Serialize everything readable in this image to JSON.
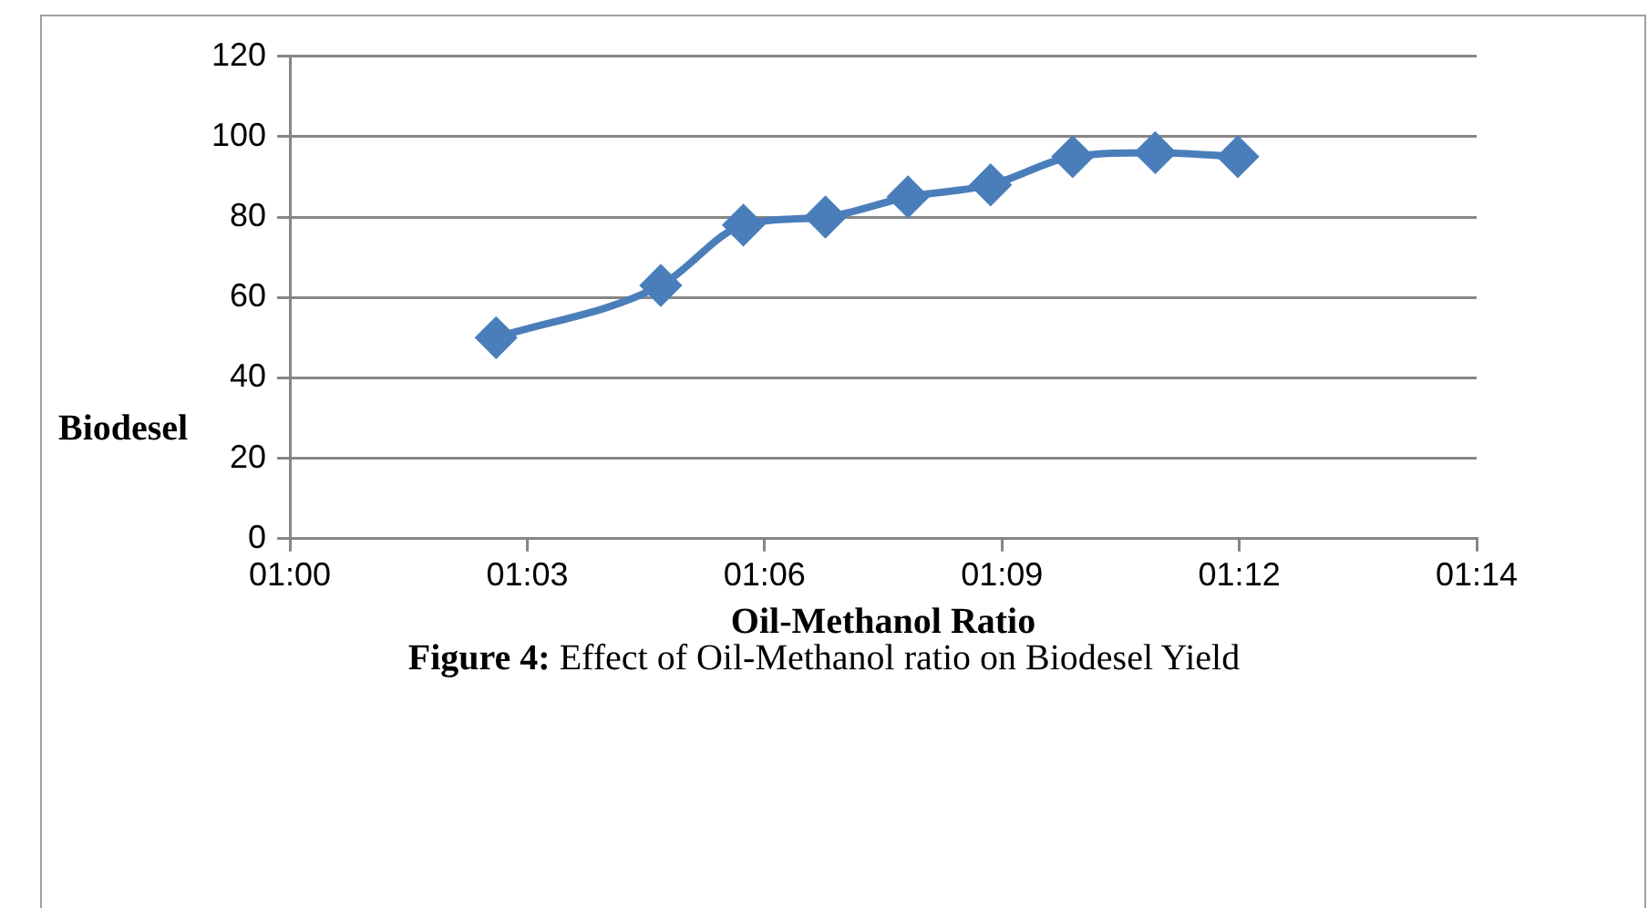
{
  "chart_data": {
    "type": "line",
    "xlabel": "Oil-Methanol Ratio",
    "ylabel": "Biodesel",
    "annotations": [
      "Figure  4: Effect of Oil-Methanol ratio on Biodesel Yield"
    ],
    "x": [
      1.0417,
      1.075,
      1.0917,
      1.1083,
      1.125,
      1.1417,
      1.1583,
      1.175,
      1.1917
    ],
    "series": [
      {
        "color": "#4a7ebb",
        "values": [
          50,
          63,
          78,
          80,
          85,
          88,
          95,
          96,
          95
        ]
      }
    ],
    "xlim": [
      1.0,
      1.24
    ],
    "xticks": [
      {
        "value": 1.0,
        "label": "01:00"
      },
      {
        "value": 1.048,
        "label": "01:03"
      },
      {
        "value": 1.096,
        "label": "01:06"
      },
      {
        "value": 1.144,
        "label": "01:09"
      },
      {
        "value": 1.192,
        "label": "01:12"
      },
      {
        "value": 1.24,
        "label": "01:14"
      }
    ],
    "ylim": [
      0,
      120
    ],
    "yticks": [
      0,
      20,
      40,
      60,
      80,
      100,
      120
    ],
    "grid": "y",
    "legend": false,
    "marker": "diamond",
    "line_style": "solid"
  }
}
